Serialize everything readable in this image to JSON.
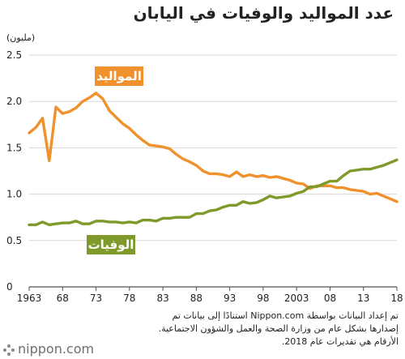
{
  "title": "عدد المواليد والوفيات في اليابان",
  "unit_label": "(مليون)",
  "source_text": "تم إعداد البيانات بواسطة Nippon.com استنادًا إلى بيانات تم إصدارها بشكل عام من وزارة الصحة والعمل والشؤون الاجتماعية. الأرقام هي تقديرات عام 2018.",
  "logo_text": "nippon.com",
  "colors": {
    "births": "#f0912c",
    "deaths": "#7f9a2a",
    "grid": "#d7d7d7",
    "axis": "#555555"
  },
  "chart_data": {
    "type": "line",
    "title": "عدد المواليد والوفيات في اليابان",
    "ylabel": "(مليون)",
    "xlabel": "",
    "ylim": [
      0,
      2.5
    ],
    "yticks": [
      0,
      0.5,
      1.0,
      1.5,
      2.0,
      2.5
    ],
    "ytick_labels": [
      "0",
      "0.5",
      "1.0",
      "1.5",
      "2.0",
      "2.5"
    ],
    "xlim": [
      1963,
      2018
    ],
    "xticks": [
      1963,
      1968,
      1973,
      1978,
      1983,
      1988,
      1993,
      1998,
      2003,
      2008,
      2013,
      2018
    ],
    "xtick_labels": [
      "1963",
      "68",
      "73",
      "78",
      "83",
      "88",
      "93",
      "98",
      "2003",
      "08",
      "13",
      "18"
    ],
    "grid": "horizontal",
    "x": [
      1963,
      1964,
      1965,
      1966,
      1967,
      1968,
      1969,
      1970,
      1971,
      1972,
      1973,
      1974,
      1975,
      1976,
      1977,
      1978,
      1979,
      1980,
      1981,
      1982,
      1983,
      1984,
      1985,
      1986,
      1987,
      1988,
      1989,
      1990,
      1991,
      1992,
      1993,
      1994,
      1995,
      1996,
      1997,
      1998,
      1999,
      2000,
      2001,
      2002,
      2003,
      2004,
      2005,
      2006,
      2007,
      2008,
      2009,
      2010,
      2011,
      2012,
      2013,
      2014,
      2015,
      2016,
      2017,
      2018
    ],
    "series": [
      {
        "name": "المواليد",
        "label_at": [
          1973,
          2.3
        ],
        "values": [
          1.66,
          1.72,
          1.82,
          1.36,
          1.94,
          1.87,
          1.89,
          1.93,
          2.0,
          2.04,
          2.09,
          2.03,
          1.9,
          1.83,
          1.76,
          1.71,
          1.64,
          1.58,
          1.53,
          1.52,
          1.51,
          1.49,
          1.43,
          1.38,
          1.35,
          1.31,
          1.25,
          1.22,
          1.22,
          1.21,
          1.19,
          1.24,
          1.19,
          1.21,
          1.19,
          1.2,
          1.18,
          1.19,
          1.17,
          1.15,
          1.12,
          1.11,
          1.06,
          1.09,
          1.09,
          1.09,
          1.07,
          1.07,
          1.05,
          1.04,
          1.03,
          1.0,
          1.01,
          0.98,
          0.95,
          0.92
        ]
      },
      {
        "name": "الوفيات",
        "label_at": [
          1962,
          0.5
        ],
        "values": [
          0.67,
          0.67,
          0.7,
          0.67,
          0.68,
          0.69,
          0.69,
          0.71,
          0.68,
          0.68,
          0.71,
          0.71,
          0.7,
          0.7,
          0.69,
          0.7,
          0.69,
          0.72,
          0.72,
          0.71,
          0.74,
          0.74,
          0.75,
          0.75,
          0.75,
          0.79,
          0.79,
          0.82,
          0.83,
          0.86,
          0.88,
          0.88,
          0.92,
          0.9,
          0.91,
          0.94,
          0.98,
          0.96,
          0.97,
          0.98,
          1.01,
          1.03,
          1.08,
          1.08,
          1.11,
          1.14,
          1.14,
          1.2,
          1.25,
          1.26,
          1.27,
          1.27,
          1.29,
          1.31,
          1.34,
          1.37
        ]
      }
    ]
  }
}
